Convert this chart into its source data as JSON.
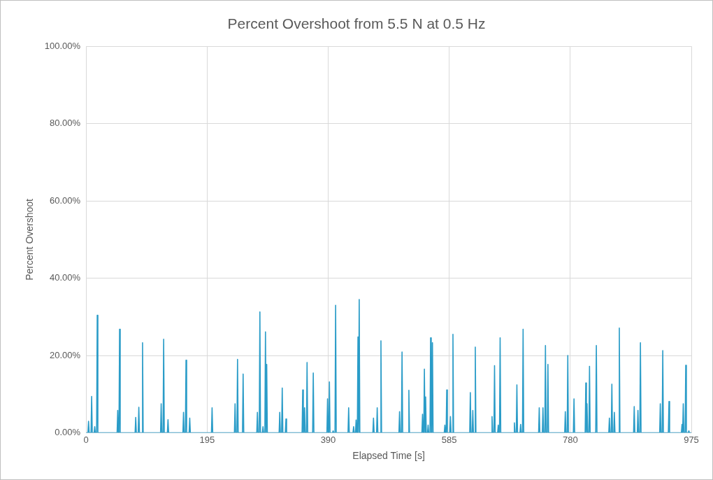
{
  "chart_data": {
    "type": "line",
    "title": "Percent Overshoot from 5.5 N at 0.5 Hz",
    "xlabel": "Elapsed Time [s]",
    "ylabel": "Percent Overshoot",
    "x": [
      0,
      3,
      4,
      5,
      8,
      9,
      10,
      13,
      14,
      15,
      17,
      18,
      19,
      50,
      51,
      52,
      53,
      54,
      55,
      79,
      80,
      81,
      84,
      85,
      86,
      90,
      91,
      92,
      120,
      121,
      122,
      124,
      125,
      126,
      131,
      132,
      133,
      156,
      157,
      158,
      160,
      161,
      162,
      166,
      167,
      168,
      202,
      203,
      204,
      239,
      240,
      241,
      243,
      244,
      245,
      252,
      253,
      254,
      275,
      276,
      277,
      279,
      280,
      281,
      284,
      285,
      286,
      288,
      289,
      290,
      291,
      292,
      311,
      312,
      313,
      315,
      316,
      317,
      321,
      322,
      323,
      348,
      349,
      350,
      351,
      352,
      353,
      355,
      356,
      357,
      365,
      366,
      367,
      388,
      389,
      390,
      391,
      392,
      393,
      397,
      398,
      399,
      401,
      402,
      403,
      422,
      423,
      424,
      430,
      431,
      432,
      434,
      435,
      436,
      437,
      438,
      439,
      440,
      441,
      462,
      463,
      464,
      468,
      469,
      470,
      474,
      475,
      476,
      504,
      505,
      506,
      508,
      509,
      510,
      519,
      520,
      521,
      541,
      542,
      543,
      544,
      545,
      546,
      547,
      548,
      550,
      551,
      552,
      554,
      555,
      556,
      557,
      558,
      559,
      577,
      578,
      579,
      580,
      581,
      582,
      586,
      587,
      588,
      590,
      591,
      592,
      618,
      619,
      620,
      622,
      623,
      624,
      626,
      627,
      628,
      653,
      654,
      655,
      657,
      658,
      659,
      663,
      664,
      665,
      666,
      667,
      668,
      689,
      690,
      691,
      693,
      694,
      695,
      699,
      700,
      701,
      703,
      704,
      705,
      729,
      730,
      731,
      735,
      736,
      737,
      739,
      740,
      741,
      743,
      744,
      745,
      771,
      772,
      773,
      775,
      776,
      777,
      785,
      786,
      787,
      804,
      805,
      806,
      807,
      808,
      810,
      811,
      812,
      821,
      822,
      823,
      842,
      843,
      844,
      846,
      847,
      848,
      850,
      851,
      852,
      858,
      859,
      860,
      882,
      883,
      884,
      888,
      889,
      890,
      892,
      893,
      894,
      924,
      925,
      926,
      928,
      929,
      930,
      938,
      939,
      940,
      959,
      960,
      961,
      962,
      963,
      965,
      966,
      967,
      970,
      971,
      972,
      975
    ],
    "series": [
      {
        "color": "#2a9cc8",
        "values": [
          0,
          0,
          3.0,
          0,
          0,
          9.4,
          0,
          0,
          1.6,
          0,
          0,
          30.4,
          0,
          0,
          5.8,
          0,
          0,
          26.8,
          0,
          0,
          4.0,
          0,
          0,
          6.6,
          0,
          0,
          23.3,
          0,
          0,
          7.5,
          0,
          0,
          24.2,
          0,
          0,
          3.4,
          0,
          0,
          5.3,
          0,
          0,
          18.8,
          0,
          0,
          3.8,
          0,
          0,
          6.5,
          0,
          0,
          7.5,
          0,
          0,
          19.0,
          0,
          0,
          15.2,
          0,
          0,
          5.3,
          0,
          0,
          31.3,
          0,
          0,
          1.6,
          0,
          0,
          26.1,
          0,
          17.7,
          0,
          0,
          5.3,
          0,
          0,
          11.6,
          0,
          0,
          3.6,
          0,
          0,
          11.1,
          0,
          0,
          6.5,
          0,
          0,
          18.2,
          0,
          0,
          15.5,
          0,
          0,
          8.8,
          0,
          0,
          13.2,
          0,
          0,
          0.5,
          0,
          0,
          33.0,
          0,
          0,
          6.5,
          0,
          0,
          1.6,
          0,
          0,
          3.3,
          0,
          0,
          24.8,
          0,
          34.5,
          0,
          0,
          3.8,
          0,
          0,
          6.5,
          0,
          0,
          23.8,
          0,
          0,
          5.5,
          0,
          0,
          20.9,
          0,
          0,
          11.0,
          0,
          0,
          4.8,
          0,
          0,
          16.5,
          0,
          9.3,
          0,
          0,
          2.0,
          0,
          0,
          24.6,
          0,
          0,
          23.3,
          0,
          0,
          2.0,
          0,
          0,
          11.1,
          0,
          0,
          4.2,
          0,
          0,
          25.5,
          0,
          0,
          10.4,
          0,
          0,
          5.8,
          0,
          0,
          22.2,
          0,
          0,
          4.2,
          0,
          0,
          17.4,
          0,
          0,
          2.0,
          0,
          0,
          24.6,
          0,
          0,
          2.6,
          0,
          0,
          12.4,
          0,
          0,
          2.2,
          0,
          0,
          26.8,
          0,
          0,
          6.5,
          0,
          0,
          6.5,
          0,
          0,
          22.6,
          0,
          0,
          17.7,
          0,
          0,
          5.5,
          0,
          0,
          20.0,
          0,
          0,
          8.8,
          0,
          0,
          12.9,
          0,
          7.5,
          0,
          0,
          17.2,
          0,
          0,
          22.6,
          0,
          0,
          3.8,
          0,
          0,
          12.6,
          0,
          0,
          5.3,
          0,
          0,
          27.1,
          0,
          0,
          6.8,
          0,
          0,
          5.8,
          0,
          0,
          23.3,
          0,
          0,
          7.5,
          0,
          0,
          21.3,
          0,
          0,
          8.1,
          0,
          0,
          2.2,
          0,
          7.5,
          0,
          0,
          17.5,
          0,
          0,
          0.5,
          0,
          0
        ]
      }
    ],
    "xlim": [
      0,
      975
    ],
    "xticks": [
      0,
      195,
      390,
      585,
      780,
      975
    ],
    "ylim": [
      0,
      100
    ],
    "yticks": [
      {
        "value": 0,
        "label": "0.00%"
      },
      {
        "value": 20,
        "label": "20.00%"
      },
      {
        "value": 40,
        "label": "40.00%"
      },
      {
        "value": 60,
        "label": "60.00%"
      },
      {
        "value": 80,
        "label": "80.00%"
      },
      {
        "value": 100,
        "label": "100.00%"
      }
    ],
    "grid": true,
    "legend": false,
    "marker": "none",
    "line_style": "solid"
  }
}
